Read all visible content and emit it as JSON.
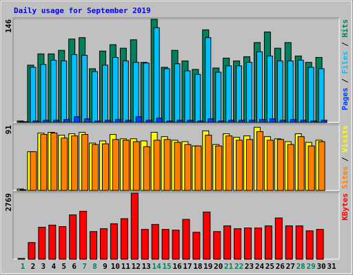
{
  "title": "Daily usage for September 2019",
  "categories": [
    "1",
    "2",
    "3",
    "4",
    "5",
    "6",
    "7",
    "8",
    "9",
    "10",
    "11",
    "12",
    "13",
    "14",
    "15",
    "16",
    "17",
    "18",
    "19",
    "20",
    "21",
    "22",
    "23",
    "24",
    "25",
    "26",
    "27",
    "28",
    "29",
    "30",
    "31"
  ],
  "category_colors": [
    "#00805c",
    "#000000",
    "#000000",
    "#000000",
    "#000000",
    "#000000",
    "#00805c",
    "#00805c",
    "#000000",
    "#000000",
    "#000000",
    "#000000",
    "#000000",
    "#00805c",
    "#00805c",
    "#000000",
    "#000000",
    "#000000",
    "#000000",
    "#000000",
    "#00805c",
    "#00805c",
    "#000000",
    "#000000",
    "#000000",
    "#000000",
    "#000000",
    "#00805c",
    "#00805c",
    "#000000",
    "#000000"
  ],
  "legend_separator": " / ",
  "chart_data": [
    {
      "type": "bar",
      "ylim": [
        0,
        146
      ],
      "yticks": [
        146
      ],
      "series": [
        {
          "name": "Hits",
          "color": "#00805c",
          "values": [
            2,
            81,
            97,
            97,
            102,
            118,
            120,
            76,
            101,
            110,
            105,
            117,
            85,
            146,
            78,
            102,
            87,
            75,
            131,
            77,
            91,
            87,
            93,
            113,
            128,
            105,
            113,
            94,
            85,
            92,
            0
          ]
        },
        {
          "name": "Files",
          "color": "#00c0ff",
          "values": [
            1,
            78,
            82,
            88,
            87,
            96,
            95,
            72,
            81,
            92,
            87,
            85,
            84,
            134,
            76,
            83,
            73,
            68,
            120,
            71,
            80,
            80,
            85,
            100,
            94,
            87,
            87,
            88,
            78,
            76,
            0
          ]
        },
        {
          "name": "Pages",
          "color": "#0040ff",
          "values": [
            1,
            2,
            3,
            3,
            4,
            8,
            5,
            2,
            3,
            4,
            3,
            8,
            3,
            6,
            2,
            3,
            3,
            2,
            5,
            2,
            3,
            3,
            3,
            4,
            5,
            3,
            4,
            3,
            2,
            3,
            0
          ]
        }
      ]
    },
    {
      "type": "bar",
      "ylim": [
        0,
        91
      ],
      "yticks": [
        91
      ],
      "series": [
        {
          "name": "Visits",
          "color": "#ffff00",
          "values": [
            2,
            54,
            80,
            81,
            77,
            79,
            81,
            66,
            69,
            78,
            72,
            72,
            69,
            81,
            75,
            70,
            68,
            62,
            83,
            64,
            79,
            74,
            76,
            88,
            75,
            72,
            68,
            79,
            67,
            70,
            0
          ]
        },
        {
          "name": "Sites",
          "color": "#ff8000",
          "values": [
            1,
            54,
            78,
            80,
            73,
            76,
            78,
            64,
            65,
            71,
            70,
            68,
            61,
            70,
            71,
            67,
            64,
            62,
            77,
            62,
            76,
            70,
            71,
            82,
            70,
            71,
            64,
            75,
            62,
            68,
            0
          ]
        }
      ]
    },
    {
      "type": "bar",
      "ylim": [
        0,
        2769
      ],
      "yticks": [
        2769
      ],
      "series": [
        {
          "name": "KBytes",
          "color": "#ff0000",
          "values": [
            30,
            700,
            1340,
            1430,
            1370,
            1860,
            2010,
            1160,
            1280,
            1490,
            1700,
            2769,
            1250,
            1460,
            1250,
            1220,
            1670,
            1130,
            1980,
            1160,
            1400,
            1280,
            1310,
            1310,
            1400,
            1730,
            1400,
            1400,
            1190,
            1250,
            0
          ]
        }
      ]
    }
  ]
}
